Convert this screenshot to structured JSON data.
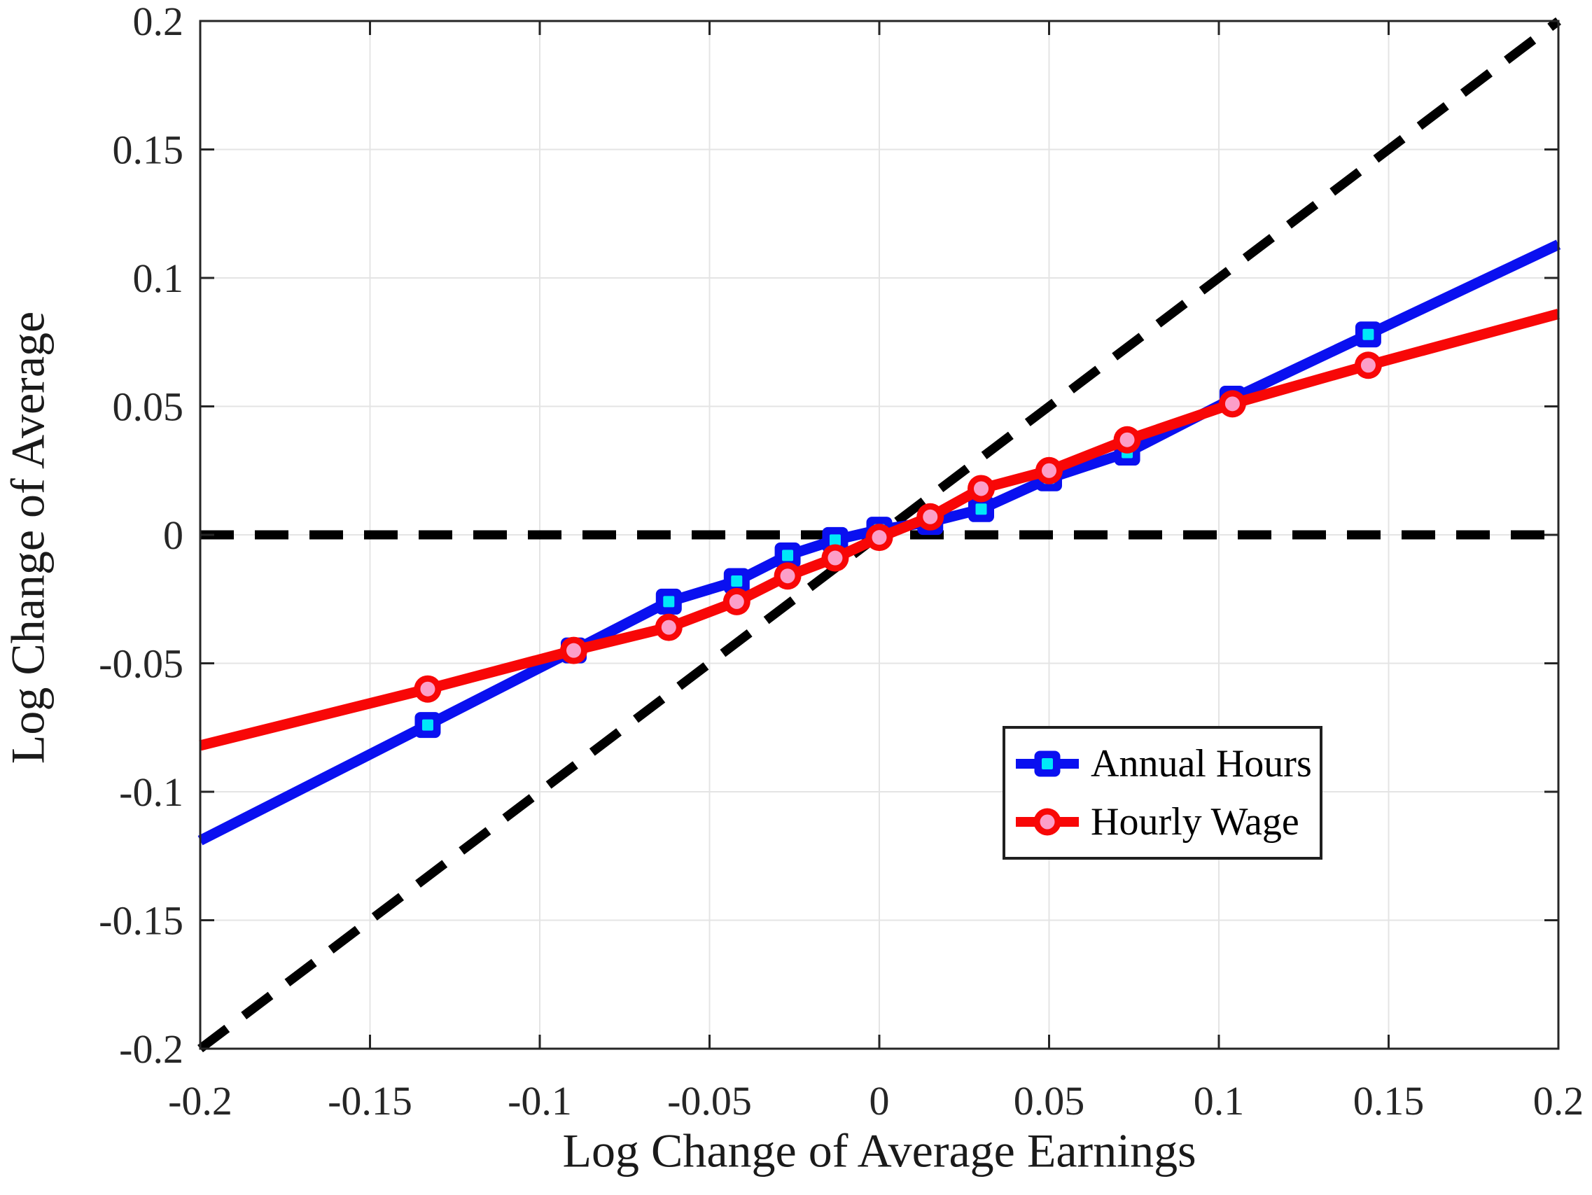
{
  "figure": {
    "background": "#FFFFFF"
  },
  "chart_data": {
    "type": "line",
    "title": "",
    "xlabel": "Log Change of Average Earnings",
    "ylabel": "Log Change of Average",
    "xlim": [
      -0.2,
      0.2
    ],
    "ylim": [
      -0.2,
      0.2
    ],
    "grid": true,
    "grid_color": "#E4E4E4",
    "axis_color": "#262626",
    "tick_label_color": "#262626",
    "xticks": [
      -0.2,
      -0.15,
      -0.1,
      -0.05,
      0,
      0.05,
      0.1,
      0.15,
      0.2
    ],
    "yticks": [
      -0.2,
      -0.15,
      -0.1,
      -0.05,
      0,
      0.05,
      0.1,
      0.15,
      0.2
    ],
    "xtick_labels": [
      "-0.2",
      "-0.15",
      "-0.1",
      "-0.05",
      "0",
      "0.05",
      "0.1",
      "0.15",
      "0.2"
    ],
    "ytick_labels": [
      "-0.2",
      "-0.15",
      "-0.1",
      "-0.05",
      "0",
      "0.05",
      "0.1",
      "0.15",
      "0.2"
    ],
    "legend_position": "inside lower right",
    "series": [
      {
        "name": "Annual Hours",
        "slug": "annual-hours",
        "color": "#0A10F0",
        "marker": "square",
        "marker_fill": "#00E8F8",
        "x": [
          -0.2,
          -0.133,
          -0.09,
          -0.062,
          -0.042,
          -0.027,
          -0.013,
          0.0,
          0.015,
          0.03,
          0.05,
          0.073,
          0.104,
          0.144,
          0.2
        ],
        "y": [
          -0.119,
          -0.074,
          -0.045,
          -0.026,
          -0.018,
          -0.008,
          -0.002,
          0.002,
          0.005,
          0.01,
          0.022,
          0.032,
          0.053,
          0.078,
          0.113
        ],
        "markers_skip_endpoints": true
      },
      {
        "name": "Hourly Wage",
        "slug": "hourly-wage",
        "color": "#F80707",
        "marker": "circle",
        "marker_fill": "#FC9EC8",
        "x": [
          -0.2,
          -0.133,
          -0.09,
          -0.062,
          -0.042,
          -0.027,
          -0.013,
          0.0,
          0.015,
          0.03,
          0.05,
          0.073,
          0.104,
          0.144,
          0.2
        ],
        "y": [
          -0.082,
          -0.06,
          -0.045,
          -0.036,
          -0.026,
          -0.016,
          -0.009,
          -0.001,
          0.007,
          0.018,
          0.025,
          0.037,
          0.051,
          0.066,
          0.086
        ],
        "markers_skip_endpoints": true
      }
    ],
    "reference_lines": [
      {
        "name": "45-degree-line",
        "style": "dashed",
        "color": "#000000",
        "from": [
          -0.2,
          -0.2
        ],
        "to": [
          0.2,
          0.2
        ]
      },
      {
        "name": "zero-line",
        "style": "dashed",
        "color": "#000000",
        "from": [
          -0.2,
          0
        ],
        "to": [
          0.2,
          0
        ]
      }
    ]
  }
}
